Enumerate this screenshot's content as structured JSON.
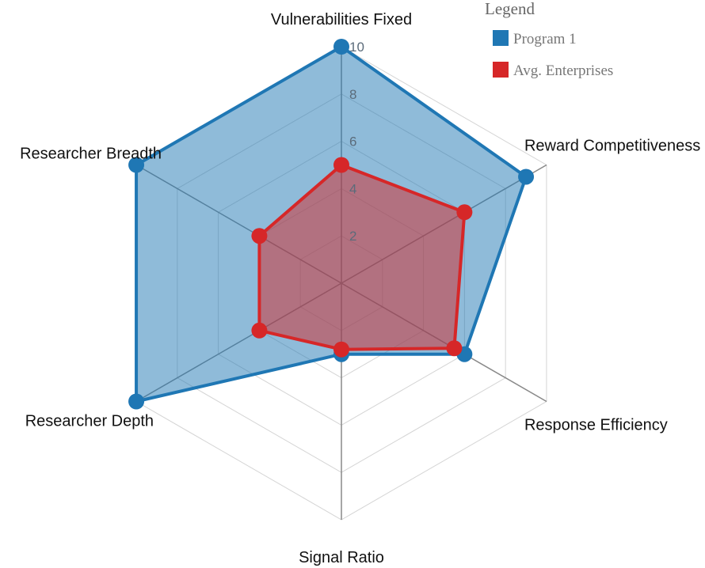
{
  "chart_data": {
    "type": "radar",
    "axes": [
      "Vulnerabilities Fixed",
      "Reward Competitiveness",
      "Response Efficiency",
      "Signal Ratio",
      "Researcher Depth",
      "Researcher Breadth"
    ],
    "range": [
      0,
      10
    ],
    "ticks": [
      2,
      4,
      6,
      8,
      10
    ],
    "series": [
      {
        "name": "Program 1",
        "color": "#1f77b4",
        "fill": "#1f77b4",
        "values": [
          10,
          9,
          6,
          3,
          10,
          10
        ]
      },
      {
        "name": "Avg. Enterprises",
        "color": "#d62728",
        "fill": "#d62728",
        "values": [
          5,
          6,
          5.5,
          2.8,
          4,
          4
        ]
      }
    ],
    "legend": {
      "title": "Legend",
      "placement": "top-right"
    }
  }
}
